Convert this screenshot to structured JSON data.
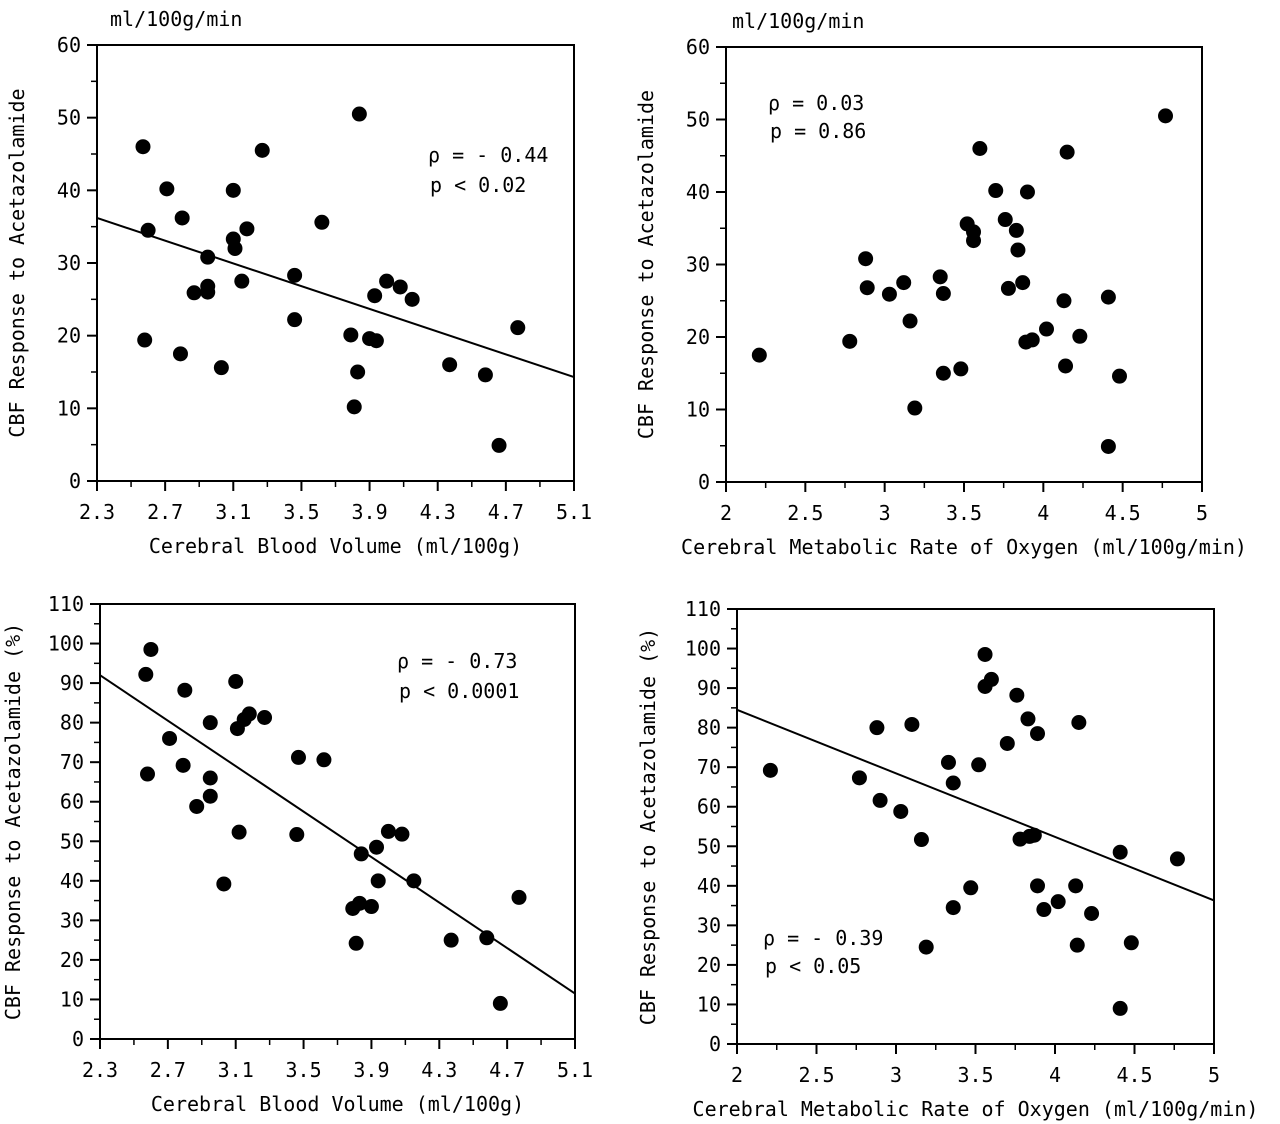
{
  "chart_data": [
    {
      "type": "scatter",
      "unit_label": "ml/100g/min",
      "xlabel": "Cerebral Blood Volume (ml/100g)",
      "ylabel": "CBF Response to Acetazolamide",
      "xlim": [
        2.3,
        5.1
      ],
      "ylim": [
        0,
        60
      ],
      "x_ticks": [
        "2.3",
        "2.7",
        "3.1",
        "3.5",
        "3.9",
        "4.3",
        "4.7",
        "5.1"
      ],
      "y_ticks": [
        "0",
        "10",
        "20",
        "30",
        "40",
        "50",
        "60"
      ],
      "annotation": {
        "rho": "ρ = - 0.44",
        "p": "p < 0.02",
        "position": "upper-right"
      },
      "regression": {
        "x": [
          2.3,
          5.1
        ],
        "y": [
          36.2,
          14.3
        ]
      },
      "points": [
        {
          "x": 2.57,
          "y": 46.0
        },
        {
          "x": 2.6,
          "y": 34.5
        },
        {
          "x": 2.58,
          "y": 19.4
        },
        {
          "x": 2.71,
          "y": 40.2
        },
        {
          "x": 2.8,
          "y": 36.2
        },
        {
          "x": 2.79,
          "y": 17.5
        },
        {
          "x": 2.87,
          "y": 25.9
        },
        {
          "x": 2.95,
          "y": 30.8
        },
        {
          "x": 2.95,
          "y": 26.8
        },
        {
          "x": 2.95,
          "y": 26.0
        },
        {
          "x": 3.03,
          "y": 15.6
        },
        {
          "x": 3.1,
          "y": 40.0
        },
        {
          "x": 3.1,
          "y": 33.3
        },
        {
          "x": 3.11,
          "y": 32.0
        },
        {
          "x": 3.15,
          "y": 27.5
        },
        {
          "x": 3.18,
          "y": 34.7
        },
        {
          "x": 3.27,
          "y": 45.5
        },
        {
          "x": 3.46,
          "y": 28.3
        },
        {
          "x": 3.46,
          "y": 22.2
        },
        {
          "x": 3.62,
          "y": 35.6
        },
        {
          "x": 3.79,
          "y": 20.1
        },
        {
          "x": 3.84,
          "y": 50.5
        },
        {
          "x": 3.83,
          "y": 15.0
        },
        {
          "x": 3.81,
          "y": 10.2
        },
        {
          "x": 3.9,
          "y": 19.6
        },
        {
          "x": 3.93,
          "y": 25.5
        },
        {
          "x": 3.94,
          "y": 19.3
        },
        {
          "x": 4.0,
          "y": 27.5
        },
        {
          "x": 4.08,
          "y": 26.7
        },
        {
          "x": 4.15,
          "y": 25.0
        },
        {
          "x": 4.37,
          "y": 16.0
        },
        {
          "x": 4.58,
          "y": 14.6
        },
        {
          "x": 4.66,
          "y": 4.9
        },
        {
          "x": 4.77,
          "y": 21.1
        }
      ]
    },
    {
      "type": "scatter",
      "unit_label": "ml/100g/min",
      "xlabel": "Cerebral Metabolic Rate of Oxygen (ml/100g/min)",
      "ylabel": "CBF Response to Acetazolamide",
      "xlim": [
        2,
        5
      ],
      "ylim": [
        0,
        60
      ],
      "x_ticks": [
        "2",
        "2.5",
        "3",
        "3.5",
        "4",
        "4.5",
        "5"
      ],
      "y_ticks": [
        "0",
        "10",
        "20",
        "30",
        "40",
        "50",
        "60"
      ],
      "annotation": {
        "rho": "ρ = 0.03",
        "p": "p = 0.86",
        "position": "upper-left"
      },
      "points": [
        {
          "x": 2.21,
          "y": 17.5
        },
        {
          "x": 2.78,
          "y": 19.4
        },
        {
          "x": 2.88,
          "y": 30.8
        },
        {
          "x": 2.89,
          "y": 26.8
        },
        {
          "x": 3.03,
          "y": 25.9
        },
        {
          "x": 3.12,
          "y": 27.5
        },
        {
          "x": 3.16,
          "y": 22.2
        },
        {
          "x": 3.19,
          "y": 10.2
        },
        {
          "x": 3.35,
          "y": 28.3
        },
        {
          "x": 3.37,
          "y": 26.0
        },
        {
          "x": 3.37,
          "y": 15.0
        },
        {
          "x": 3.48,
          "y": 15.6
        },
        {
          "x": 3.52,
          "y": 35.6
        },
        {
          "x": 3.56,
          "y": 34.5
        },
        {
          "x": 3.56,
          "y": 33.3
        },
        {
          "x": 3.6,
          "y": 46.0
        },
        {
          "x": 3.7,
          "y": 40.2
        },
        {
          "x": 3.76,
          "y": 36.2
        },
        {
          "x": 3.78,
          "y": 26.7
        },
        {
          "x": 3.83,
          "y": 34.7
        },
        {
          "x": 3.84,
          "y": 32.0
        },
        {
          "x": 3.87,
          "y": 27.5
        },
        {
          "x": 3.9,
          "y": 40.0
        },
        {
          "x": 3.89,
          "y": 19.3
        },
        {
          "x": 3.93,
          "y": 19.6
        },
        {
          "x": 4.02,
          "y": 21.1
        },
        {
          "x": 4.13,
          "y": 25.0
        },
        {
          "x": 4.14,
          "y": 16.0
        },
        {
          "x": 4.15,
          "y": 45.5
        },
        {
          "x": 4.23,
          "y": 20.1
        },
        {
          "x": 4.41,
          "y": 25.5
        },
        {
          "x": 4.41,
          "y": 4.9
        },
        {
          "x": 4.48,
          "y": 14.6
        },
        {
          "x": 4.77,
          "y": 50.5
        }
      ]
    },
    {
      "type": "scatter",
      "xlabel": "Cerebral Blood Volume (ml/100g)",
      "ylabel": "CBF Response to Acetazolamide (%)",
      "xlim": [
        2.3,
        5.1
      ],
      "ylim": [
        0,
        110
      ],
      "x_ticks": [
        "2.3",
        "2.7",
        "3.1",
        "3.5",
        "3.9",
        "4.3",
        "4.7",
        "5.1"
      ],
      "y_ticks": [
        "0",
        "10",
        "20",
        "30",
        "40",
        "50",
        "60",
        "70",
        "80",
        "90",
        "100",
        "110"
      ],
      "annotation": {
        "rho": "ρ = - 0.73",
        "p": "p < 0.0001",
        "position": "upper-right"
      },
      "regression": {
        "x": [
          2.3,
          5.1
        ],
        "y": [
          92.0,
          11.5
        ]
      },
      "points": [
        {
          "x": 2.57,
          "y": 92.2
        },
        {
          "x": 2.6,
          "y": 98.5
        },
        {
          "x": 2.58,
          "y": 67.0
        },
        {
          "x": 2.71,
          "y": 76.0
        },
        {
          "x": 2.8,
          "y": 88.2
        },
        {
          "x": 2.79,
          "y": 69.2
        },
        {
          "x": 2.87,
          "y": 58.8
        },
        {
          "x": 2.95,
          "y": 80.0
        },
        {
          "x": 2.95,
          "y": 66.0
        },
        {
          "x": 2.95,
          "y": 61.4
        },
        {
          "x": 3.03,
          "y": 39.2
        },
        {
          "x": 3.1,
          "y": 90.4
        },
        {
          "x": 3.11,
          "y": 78.5
        },
        {
          "x": 3.15,
          "y": 80.8
        },
        {
          "x": 3.18,
          "y": 82.2
        },
        {
          "x": 3.12,
          "y": 52.3
        },
        {
          "x": 3.27,
          "y": 81.3
        },
        {
          "x": 3.47,
          "y": 71.2
        },
        {
          "x": 3.46,
          "y": 51.7
        },
        {
          "x": 3.62,
          "y": 70.6
        },
        {
          "x": 3.79,
          "y": 33.0
        },
        {
          "x": 3.84,
          "y": 46.8
        },
        {
          "x": 3.83,
          "y": 34.3
        },
        {
          "x": 3.81,
          "y": 24.2
        },
        {
          "x": 3.9,
          "y": 33.5
        },
        {
          "x": 3.93,
          "y": 48.5
        },
        {
          "x": 3.94,
          "y": 40.0
        },
        {
          "x": 4.0,
          "y": 52.5
        },
        {
          "x": 4.08,
          "y": 51.8
        },
        {
          "x": 4.15,
          "y": 40.0
        },
        {
          "x": 4.37,
          "y": 25.0
        },
        {
          "x": 4.58,
          "y": 25.6
        },
        {
          "x": 4.66,
          "y": 9.0
        },
        {
          "x": 4.77,
          "y": 35.8
        }
      ]
    },
    {
      "type": "scatter",
      "xlabel": "Cerebral Metabolic Rate of Oxygen (ml/100g/min)",
      "ylabel": "CBF Response to Acetazolamide (%)",
      "xlim": [
        2,
        5
      ],
      "ylim": [
        0,
        110
      ],
      "x_ticks": [
        "2",
        "2.5",
        "3",
        "3.5",
        "4",
        "4.5",
        "5"
      ],
      "y_ticks": [
        "0",
        "10",
        "20",
        "30",
        "40",
        "50",
        "60",
        "70",
        "80",
        "90",
        "100",
        "110"
      ],
      "annotation": {
        "rho": "ρ = - 0.39",
        "p": "p < 0.05",
        "position": "lower-left"
      },
      "regression": {
        "x": [
          2,
          5
        ],
        "y": [
          84.5,
          36.3
        ]
      },
      "points": [
        {
          "x": 2.21,
          "y": 69.2
        },
        {
          "x": 2.77,
          "y": 67.3
        },
        {
          "x": 2.88,
          "y": 80.0
        },
        {
          "x": 2.9,
          "y": 61.6
        },
        {
          "x": 3.03,
          "y": 58.8
        },
        {
          "x": 3.1,
          "y": 80.8
        },
        {
          "x": 3.16,
          "y": 51.7
        },
        {
          "x": 3.19,
          "y": 24.5
        },
        {
          "x": 3.33,
          "y": 71.2
        },
        {
          "x": 3.36,
          "y": 66.0
        },
        {
          "x": 3.36,
          "y": 34.5
        },
        {
          "x": 3.47,
          "y": 39.5
        },
        {
          "x": 3.52,
          "y": 70.6
        },
        {
          "x": 3.56,
          "y": 98.5
        },
        {
          "x": 3.56,
          "y": 90.4
        },
        {
          "x": 3.6,
          "y": 92.2
        },
        {
          "x": 3.7,
          "y": 76.0
        },
        {
          "x": 3.76,
          "y": 88.2
        },
        {
          "x": 3.78,
          "y": 51.8
        },
        {
          "x": 3.83,
          "y": 82.2
        },
        {
          "x": 3.84,
          "y": 52.5
        },
        {
          "x": 3.87,
          "y": 52.8
        },
        {
          "x": 3.89,
          "y": 78.5
        },
        {
          "x": 3.89,
          "y": 40.0
        },
        {
          "x": 3.93,
          "y": 34.0
        },
        {
          "x": 4.02,
          "y": 36.0
        },
        {
          "x": 4.13,
          "y": 40.0
        },
        {
          "x": 4.14,
          "y": 25.0
        },
        {
          "x": 4.15,
          "y": 81.3
        },
        {
          "x": 4.23,
          "y": 33.0
        },
        {
          "x": 4.41,
          "y": 48.5
        },
        {
          "x": 4.41,
          "y": 9.0
        },
        {
          "x": 4.48,
          "y": 25.6
        },
        {
          "x": 4.77,
          "y": 46.8
        }
      ]
    }
  ]
}
